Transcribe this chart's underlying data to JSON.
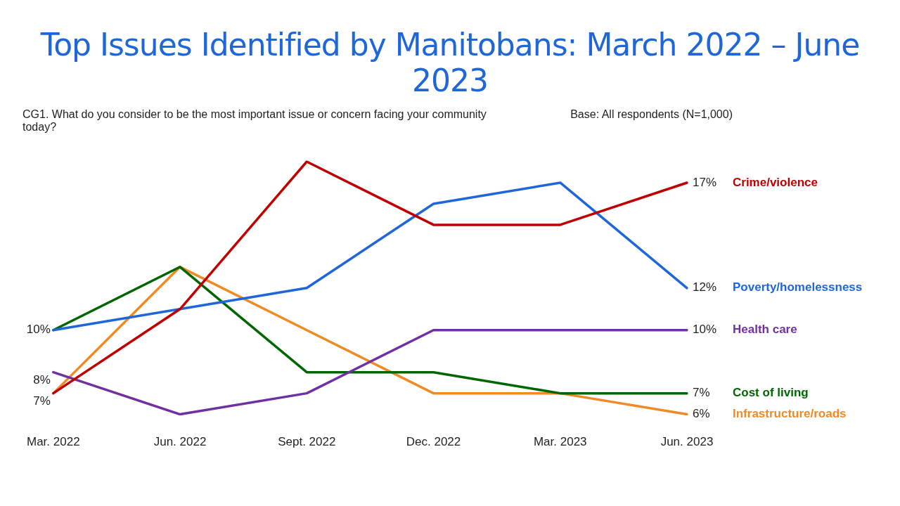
{
  "chart_data": {
    "type": "line",
    "title": "Top Issues Identified by Manitobans: March 2022 – June 2023",
    "subtitle": "CG1. What do you consider to be the most important issue or concern facing your community today?",
    "annotations": [
      "Base: All respondents (N=1,000)"
    ],
    "categories": [
      "Mar. 2022",
      "Jun. 2022",
      "Sept. 2022",
      "Dec. 2022",
      "Mar. 2023",
      "Jun. 2023"
    ],
    "series": [
      {
        "name": "Crime/violence",
        "color": "#c00000",
        "values": [
          7,
          11,
          18,
          15,
          15,
          17
        ],
        "value_labels": [
          "7%",
          null,
          null,
          null,
          null,
          "17%"
        ]
      },
      {
        "name": "Poverty/homelessness",
        "color": "#1f66d9",
        "values": [
          10,
          11,
          12,
          16,
          17,
          12
        ],
        "value_labels": [
          "10%",
          null,
          null,
          null,
          null,
          "12%"
        ]
      },
      {
        "name": "Health care",
        "color": "#7030a0",
        "values": [
          8,
          6,
          7,
          10,
          10,
          10
        ],
        "value_labels": [
          "8%",
          null,
          null,
          null,
          null,
          "10%"
        ]
      },
      {
        "name": "Cost of living",
        "color": "#006600",
        "values": [
          10,
          13,
          8,
          8,
          7,
          7
        ],
        "value_labels": [
          null,
          null,
          null,
          null,
          null,
          "7%"
        ]
      },
      {
        "name": "Infrastructure/roads",
        "color": "#f08a24",
        "values": [
          7,
          13,
          10,
          7,
          7,
          6
        ],
        "value_labels": [
          null,
          null,
          null,
          null,
          null,
          "6%"
        ]
      }
    ],
    "grid": false,
    "legend": false,
    "marker": "none",
    "line_style": "solid"
  }
}
